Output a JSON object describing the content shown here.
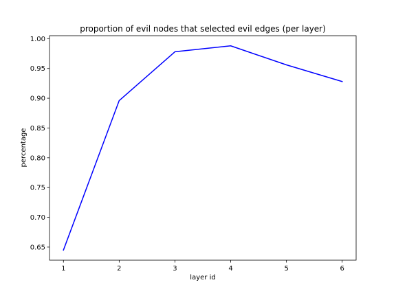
{
  "chart_data": {
    "type": "line",
    "title": "proportion of evil nodes that selected evil edges (per layer)",
    "xlabel": "layer id",
    "ylabel": "percentage",
    "x": [
      1,
      2,
      3,
      4,
      5,
      6
    ],
    "series": [
      {
        "values": [
          0.645,
          0.896,
          0.978,
          0.988,
          0.956,
          0.928
        ],
        "color": "#0000ff"
      }
    ],
    "xlim": [
      0.75,
      6.25
    ],
    "ylim": [
      0.628,
      1.005
    ],
    "xticks": [
      "1",
      "2",
      "3",
      "4",
      "5",
      "6"
    ],
    "yticks": [
      "0.65",
      "0.70",
      "0.75",
      "0.80",
      "0.85",
      "0.90",
      "0.95",
      "1.00"
    ],
    "grid": false
  }
}
